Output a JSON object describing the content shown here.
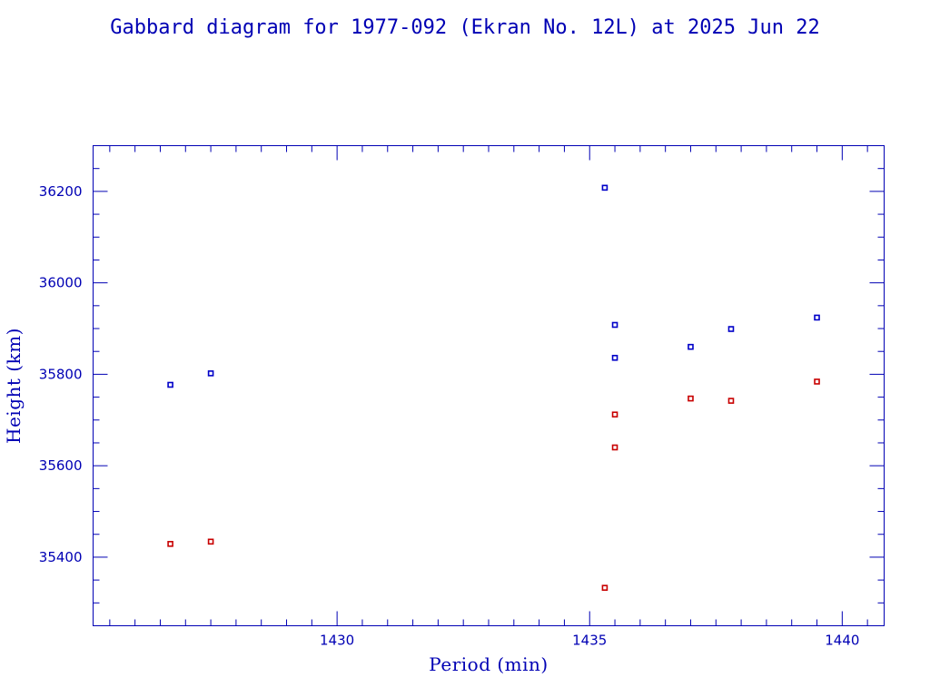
{
  "chart_data": {
    "type": "scatter",
    "title": "Gabbard diagram for 1977-092 (Ekran No. 12L) at 2025 Jun 22",
    "xlabel": "Period (min)",
    "ylabel": "Height (km)",
    "xlim": [
      1425.17,
      1440.83
    ],
    "ylim": [
      35250,
      36300
    ],
    "x_major_ticks": [
      1430,
      1435,
      1440
    ],
    "x_minor_step": 0.5,
    "y_major_ticks": [
      35400,
      35600,
      35800,
      36000,
      36200
    ],
    "y_minor_step": 50,
    "grid": false,
    "series": [
      {
        "role": "apogee",
        "color": "#0000c8",
        "x": [
          1426.7,
          1427.5,
          1435.3,
          1435.5,
          1435.5,
          1437.0,
          1437.8,
          1439.5
        ],
        "y": [
          35777,
          35802,
          36208,
          35908,
          35836,
          35860,
          35899,
          35924
        ]
      },
      {
        "role": "perigee",
        "color": "#c80000",
        "x": [
          1426.7,
          1427.5,
          1435.3,
          1435.5,
          1435.5,
          1437.0,
          1437.8,
          1439.5
        ],
        "y": [
          35429,
          35434,
          35333,
          35712,
          35640,
          35747,
          35742,
          35784
        ]
      }
    ]
  }
}
